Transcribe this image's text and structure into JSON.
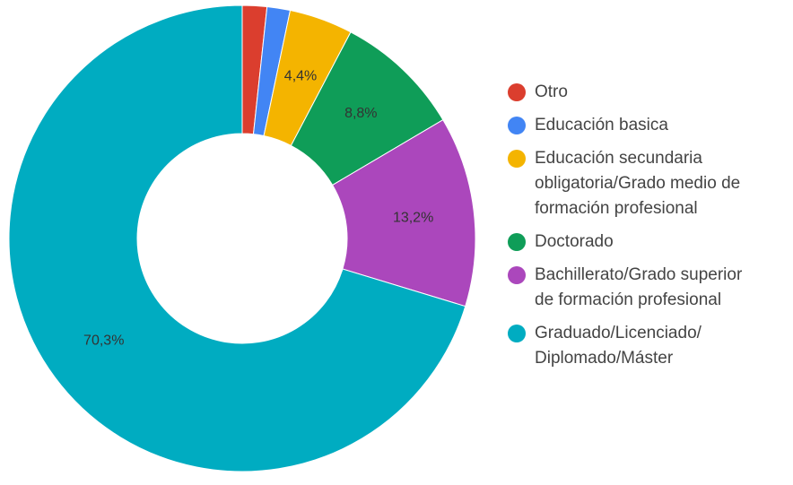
{
  "chart_data": {
    "type": "donut",
    "categories": [
      "Otro",
      "Educación basica",
      "Educación secundaria obligatoria/Grado medio de formación profesional",
      "Doctorado",
      "Bachillerato/Grado superior de formación profesional",
      "Graduado/Licenciado/ Diplomado/Máster"
    ],
    "values": [
      1.7,
      1.6,
      4.4,
      8.8,
      13.2,
      70.3
    ],
    "value_labels": [
      null,
      null,
      "4,4%",
      "8,8%",
      "13,2%",
      "70,3%"
    ],
    "colors": [
      "#db3e2e",
      "#4285f4",
      "#f4b400",
      "#0f9d58",
      "#ab47bc",
      "#00acc1"
    ],
    "legend": "right"
  }
}
